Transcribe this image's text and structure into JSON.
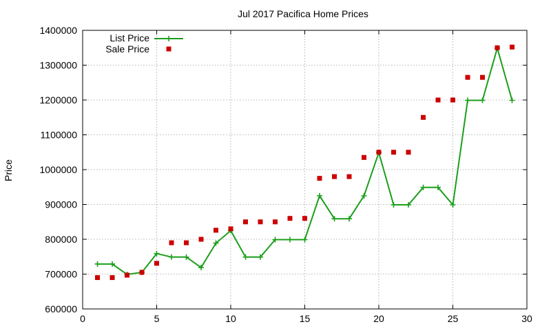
{
  "chart_data": {
    "type": "line",
    "title": "Jul 2017 Pacifica Home Prices",
    "xlabel": "",
    "ylabel": "Price",
    "xlim": [
      0,
      30
    ],
    "ylim": [
      600000,
      1400000
    ],
    "xticks": [
      0,
      5,
      10,
      15,
      20,
      25,
      30
    ],
    "yticks": [
      600000,
      700000,
      800000,
      900000,
      1000000,
      1100000,
      1200000,
      1300000,
      1400000
    ],
    "grid": true,
    "legend_position": "top-left",
    "x": [
      1,
      2,
      3,
      4,
      5,
      6,
      7,
      8,
      9,
      10,
      11,
      12,
      13,
      14,
      15,
      16,
      17,
      18,
      19,
      20,
      21,
      22,
      23,
      24,
      25,
      26,
      27,
      28,
      29
    ],
    "series": [
      {
        "name": "List Price",
        "style": "line-plus",
        "color": "#1a9e1a",
        "values": [
          729000,
          729000,
          699000,
          705000,
          759000,
          749000,
          749000,
          719000,
          789000,
          825000,
          749000,
          749000,
          799000,
          799000,
          799000,
          925000,
          859000,
          859000,
          925000,
          1049000,
          899000,
          899000,
          949000,
          949000,
          899000,
          1199000,
          1199000,
          1349000,
          1199000
        ]
      },
      {
        "name": "Sale Price",
        "style": "square-points",
        "color": "#cc0000",
        "values": [
          690000,
          690000,
          697000,
          705000,
          731000,
          790000,
          790000,
          800000,
          826000,
          830000,
          850000,
          850000,
          850000,
          860000,
          860000,
          975000,
          980000,
          980000,
          1035000,
          1050000,
          1050000,
          1050000,
          1150000,
          1200000,
          1200000,
          1265000,
          1265000,
          1350000,
          1352000
        ]
      }
    ]
  }
}
